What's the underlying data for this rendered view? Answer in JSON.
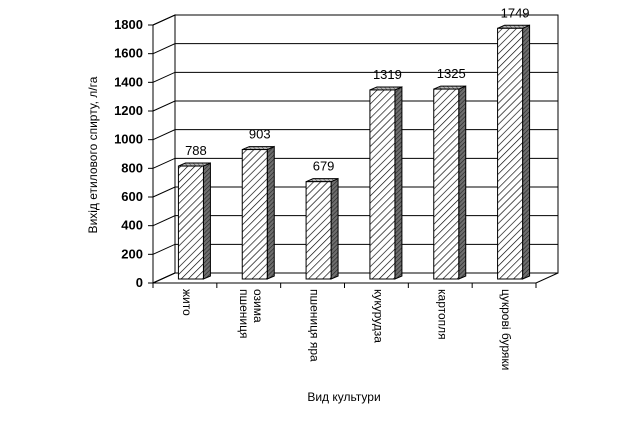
{
  "chart_data": {
    "type": "bar",
    "categories": [
      [
        "жито"
      ],
      [
        "пшениця",
        "озима"
      ],
      [
        "пшениця яра"
      ],
      [
        "кукурудза"
      ],
      [
        "картопля"
      ],
      [
        "цукрові буряки"
      ]
    ],
    "values": [
      788,
      903,
      679,
      1319,
      1325,
      1749
    ],
    "data_labels": [
      "788",
      "903",
      "679",
      "1319",
      "1325",
      "1749"
    ],
    "ylabel": "Вихід етилового спирту, л/га",
    "xlabel": "Вид культури",
    "ylim": [
      0,
      1800
    ],
    "yticks": [
      "0",
      "200",
      "400",
      "600",
      "800",
      "1000",
      "1200",
      "1400",
      "1600",
      "1800"
    ],
    "grid": true,
    "three_d": true,
    "bar_fill": "diagonal-hatch",
    "colors": {
      "bar_stroke": "#000000",
      "bar_side": "#7f7f7f",
      "grid": "#000000",
      "background": "#ffffff"
    }
  }
}
